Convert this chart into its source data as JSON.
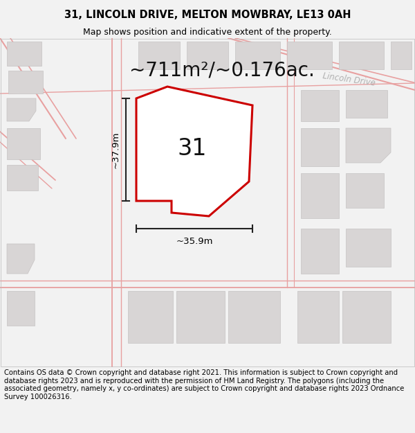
{
  "title_line1": "31, LINCOLN DRIVE, MELTON MOWBRAY, LE13 0AH",
  "title_line2": "Map shows position and indicative extent of the property.",
  "area_text": "~711m²/~0.176ac.",
  "width_label": "~35.9m",
  "height_label": "~37.9m",
  "number_label": "31",
  "road_label": "Lincoln Drive",
  "footer_text": "Contains OS data © Crown copyright and database right 2021. This information is subject to Crown copyright and database rights 2023 and is reproduced with the permission of HM Land Registry. The polygons (including the associated geometry, namely x, y co-ordinates) are subject to Crown copyright and database rights 2023 Ordnance Survey 100026316.",
  "bg_color": "#f2f2f2",
  "map_bg": "#ece9e9",
  "plot_color": "#ffffff",
  "plot_edge_color": "#cc0000",
  "building_color": "#d8d5d5",
  "road_line_color": "#e8a0a0",
  "dim_line_color": "#222222",
  "road_label_color": "#b0b0b0",
  "title_fontsize": 10.5,
  "subtitle_fontsize": 9,
  "area_fontsize": 20,
  "number_fontsize": 24,
  "dim_fontsize": 9.5,
  "footer_fontsize": 7.2,
  "road_label_fontsize": 8.5
}
